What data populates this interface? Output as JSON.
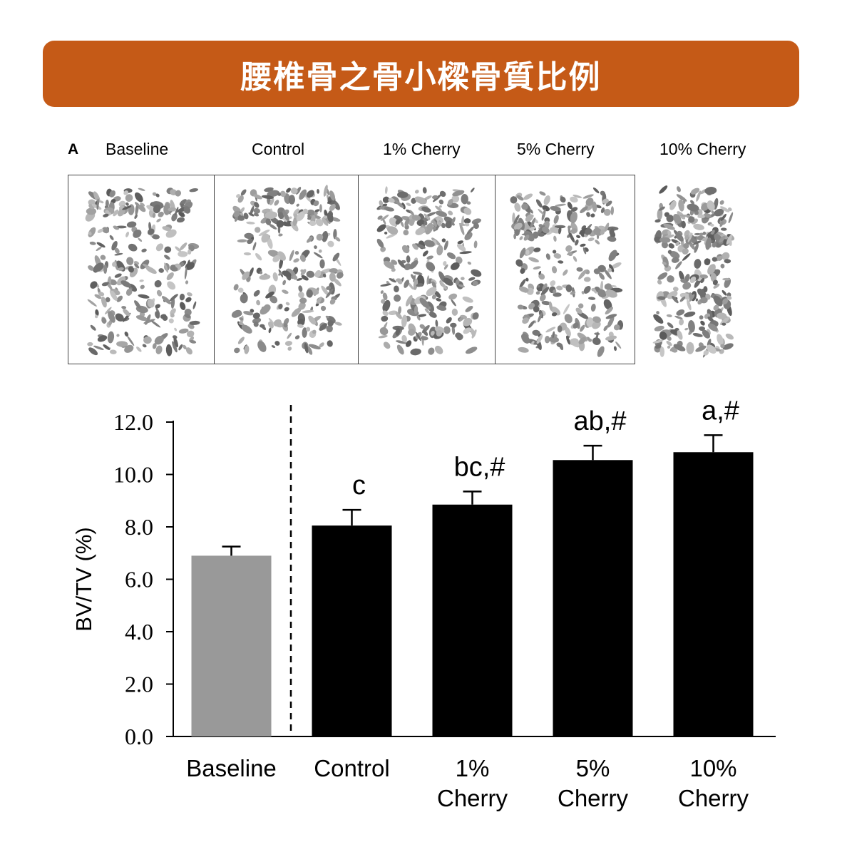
{
  "header": {
    "title": "腰椎骨之骨小樑骨質比例",
    "banner_color": "#c55a17"
  },
  "panel": {
    "letter": "A",
    "labels": [
      "Baseline",
      "Control",
      "1% Cherry",
      "5% Cherry",
      "10% Cherry"
    ]
  },
  "chart_data": {
    "type": "bar",
    "ylabel": "BV/TV (%)",
    "xlabel": "",
    "ylim": [
      0,
      12
    ],
    "yticks": [
      "0.0",
      "2.0",
      "4.0",
      "6.0",
      "8.0",
      "10.0",
      "12.0"
    ],
    "grid": false,
    "categories": [
      [
        "Baseline"
      ],
      [
        "Control"
      ],
      [
        "1%",
        "Cherry"
      ],
      [
        "5%",
        "Cherry"
      ],
      [
        "10%",
        "Cherry"
      ]
    ],
    "values": [
      6.9,
      8.05,
      8.85,
      10.55,
      10.85
    ],
    "errors": [
      0.35,
      0.6,
      0.5,
      0.55,
      0.65
    ],
    "annotations": [
      "",
      "c",
      "bc,#",
      "ab,#",
      "a,#"
    ],
    "colors": [
      "#999999",
      "#000000",
      "#000000",
      "#000000",
      "#000000"
    ],
    "separator_after_index": 0
  }
}
